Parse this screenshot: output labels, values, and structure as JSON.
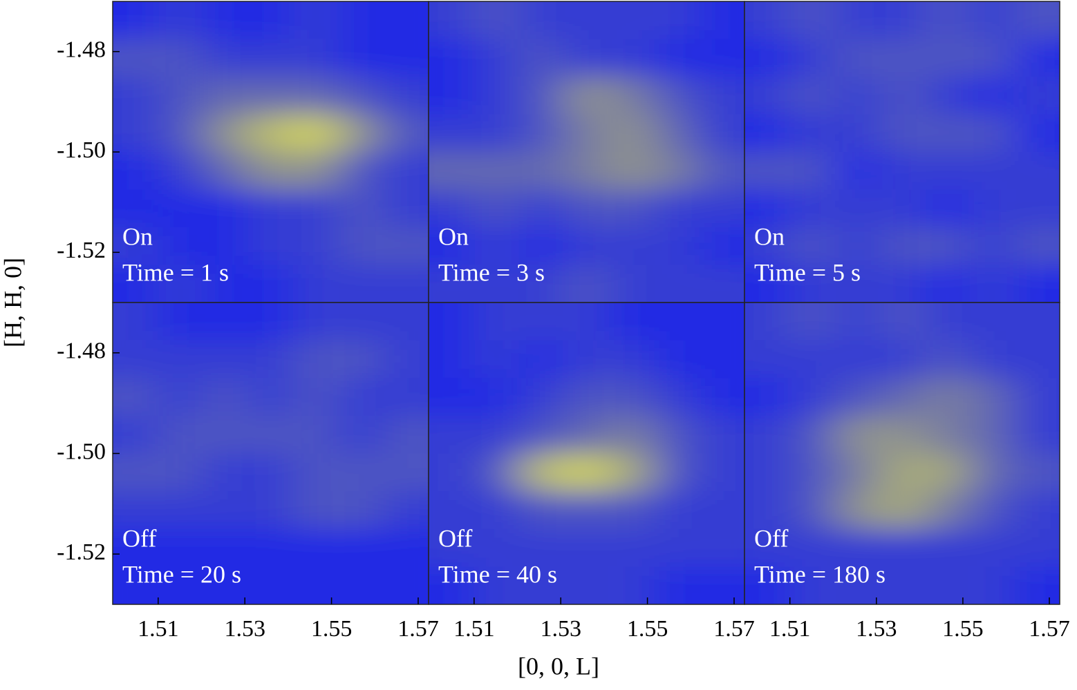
{
  "chart_data": [
    {
      "type": "heatmap",
      "annotations": [
        "On",
        "Time = 1 s"
      ],
      "ylabel": "[H, H, 0]",
      "xlim": [
        1.4995,
        1.5724
      ],
      "ylim": [
        -1.53,
        -1.47
      ],
      "yticks": [
        -1.48,
        {
          "value": -1.5,
          "label": "-1.50"
        },
        -1.52
      ],
      "colormap": [
        "#0a14f5",
        "#e8e84a"
      ],
      "z": [
        [
          0.1,
          0.2,
          0.1,
          0.1,
          0.2,
          0.1,
          0.1
        ],
        [
          0.3,
          0.3,
          0.2,
          0.2,
          0.2,
          0.1,
          0.1
        ],
        [
          0.2,
          0.3,
          0.4,
          0.4,
          0.4,
          0.3,
          0.2
        ],
        [
          0.2,
          0.3,
          0.6,
          0.8,
          0.9,
          0.6,
          0.3
        ],
        [
          0.1,
          0.2,
          0.4,
          0.6,
          0.6,
          0.3,
          0.2
        ],
        [
          0.1,
          0.1,
          0.1,
          0.2,
          0.2,
          0.3,
          0.2
        ],
        [
          0.2,
          0.1,
          0.1,
          0.2,
          0.2,
          0.3,
          0.3
        ],
        [
          0.1,
          0.2,
          0.1,
          0.1,
          0.2,
          0.2,
          0.2
        ]
      ]
    },
    {
      "type": "heatmap",
      "annotations": [
        "On",
        "Time = 3 s"
      ],
      "xlim": [
        1.4995,
        1.5724
      ],
      "ylim": [
        -1.53,
        -1.47
      ],
      "colormap": [
        "#0a14f5",
        "#e8e84a"
      ],
      "z": [
        [
          0.2,
          0.3,
          0.2,
          0.2,
          0.2,
          0.2,
          0.1
        ],
        [
          0.1,
          0.2,
          0.3,
          0.2,
          0.2,
          0.1,
          0.1
        ],
        [
          0.1,
          0.2,
          0.3,
          0.6,
          0.5,
          0.3,
          0.2
        ],
        [
          0.2,
          0.2,
          0.3,
          0.5,
          0.6,
          0.4,
          0.2
        ],
        [
          0.4,
          0.4,
          0.4,
          0.5,
          0.6,
          0.5,
          0.3
        ],
        [
          0.2,
          0.3,
          0.2,
          0.3,
          0.3,
          0.2,
          0.2
        ],
        [
          0.1,
          0.2,
          0.1,
          0.2,
          0.2,
          0.2,
          0.1
        ],
        [
          0.2,
          0.2,
          0.2,
          0.3,
          0.2,
          0.2,
          0.2
        ]
      ]
    },
    {
      "type": "heatmap",
      "annotations": [
        "On",
        "Time = 5 s"
      ],
      "xlim": [
        1.4995,
        1.5724
      ],
      "ylim": [
        -1.53,
        -1.47
      ],
      "colormap": [
        "#0a14f5",
        "#e8e84a"
      ],
      "z": [
        [
          0.2,
          0.3,
          0.2,
          0.2,
          0.3,
          0.2,
          0.3
        ],
        [
          0.1,
          0.2,
          0.3,
          0.3,
          0.3,
          0.3,
          0.1
        ],
        [
          0.2,
          0.3,
          0.2,
          0.3,
          0.2,
          0.1,
          0.2
        ],
        [
          0.1,
          0.2,
          0.2,
          0.3,
          0.3,
          0.3,
          0.1
        ],
        [
          0.3,
          0.3,
          0.1,
          0.2,
          0.2,
          0.2,
          0.2
        ],
        [
          0.1,
          0.2,
          0.2,
          0.2,
          0.1,
          0.2,
          0.2
        ],
        [
          0.2,
          0.3,
          0.2,
          0.3,
          0.3,
          0.2,
          0.3
        ],
        [
          0.1,
          0.2,
          0.2,
          0.2,
          0.1,
          0.2,
          0.1
        ]
      ]
    },
    {
      "type": "heatmap",
      "annotations": [
        "Off",
        "Time = 20 s"
      ],
      "xlim": [
        1.4995,
        1.5724
      ],
      "ylim": [
        -1.53,
        -1.47
      ],
      "xticks": [
        1.51,
        1.53,
        1.55,
        1.57
      ],
      "yticks": [
        -1.48,
        {
          "value": -1.5,
          "label": "-1.50"
        },
        -1.52
      ],
      "colormap": [
        "#0a14f5",
        "#e8e84a"
      ],
      "z": [
        [
          0.2,
          0.1,
          0.1,
          0.1,
          0.2,
          0.2,
          0.2
        ],
        [
          0.2,
          0.2,
          0.2,
          0.2,
          0.3,
          0.3,
          0.2
        ],
        [
          0.3,
          0.2,
          0.3,
          0.2,
          0.3,
          0.2,
          0.2
        ],
        [
          0.2,
          0.3,
          0.3,
          0.3,
          0.3,
          0.2,
          0.3
        ],
        [
          0.3,
          0.3,
          0.2,
          0.2,
          0.3,
          0.3,
          0.3
        ],
        [
          0.2,
          0.2,
          0.2,
          0.2,
          0.3,
          0.3,
          0.2
        ],
        [
          0.1,
          0.1,
          0.1,
          0.1,
          0.1,
          0.1,
          0.1
        ],
        [
          0.1,
          0.1,
          0.1,
          0.1,
          0.1,
          0.1,
          0.1
        ]
      ]
    },
    {
      "type": "heatmap",
      "annotations": [
        "Off",
        "Time = 40 s"
      ],
      "xlabel": "[0, 0, L]",
      "xlim": [
        1.4995,
        1.5724
      ],
      "ylim": [
        -1.53,
        -1.47
      ],
      "xticks": [
        1.51,
        1.53,
        1.55,
        1.57
      ],
      "colormap": [
        "#0a14f5",
        "#e8e84a"
      ],
      "z": [
        [
          0.1,
          0.2,
          0.2,
          0.2,
          0.1,
          0.1,
          0.1
        ],
        [
          0.1,
          0.2,
          0.1,
          0.2,
          0.2,
          0.1,
          0.1
        ],
        [
          0.1,
          0.1,
          0.2,
          0.3,
          0.3,
          0.2,
          0.1
        ],
        [
          0.2,
          0.2,
          0.3,
          0.4,
          0.5,
          0.3,
          0.2
        ],
        [
          0.2,
          0.3,
          0.8,
          0.9,
          0.7,
          0.3,
          0.2
        ],
        [
          0.2,
          0.2,
          0.3,
          0.3,
          0.3,
          0.2,
          0.2
        ],
        [
          0.2,
          0.2,
          0.2,
          0.2,
          0.2,
          0.2,
          0.2
        ],
        [
          0.1,
          0.2,
          0.2,
          0.2,
          0.2,
          0.1,
          0.1
        ]
      ]
    },
    {
      "type": "heatmap",
      "annotations": [
        "Off",
        "Time = 180 s"
      ],
      "xlim": [
        1.4995,
        1.5724
      ],
      "ylim": [
        -1.53,
        -1.47
      ],
      "xticks": [
        1.51,
        1.53,
        1.55,
        1.57
      ],
      "colormap": [
        "#0a14f5",
        "#e8e84a"
      ],
      "z": [
        [
          0.2,
          0.3,
          0.2,
          0.3,
          0.2,
          0.2,
          0.2
        ],
        [
          0.2,
          0.2,
          0.2,
          0.2,
          0.3,
          0.2,
          0.2
        ],
        [
          0.1,
          0.2,
          0.3,
          0.4,
          0.5,
          0.4,
          0.2
        ],
        [
          0.2,
          0.3,
          0.6,
          0.6,
          0.5,
          0.4,
          0.2
        ],
        [
          0.2,
          0.3,
          0.5,
          0.7,
          0.7,
          0.4,
          0.3
        ],
        [
          0.2,
          0.3,
          0.6,
          0.7,
          0.5,
          0.3,
          0.2
        ],
        [
          0.2,
          0.2,
          0.2,
          0.2,
          0.2,
          0.2,
          0.2
        ],
        [
          0.1,
          0.2,
          0.2,
          0.2,
          0.2,
          0.2,
          0.1
        ]
      ]
    }
  ]
}
